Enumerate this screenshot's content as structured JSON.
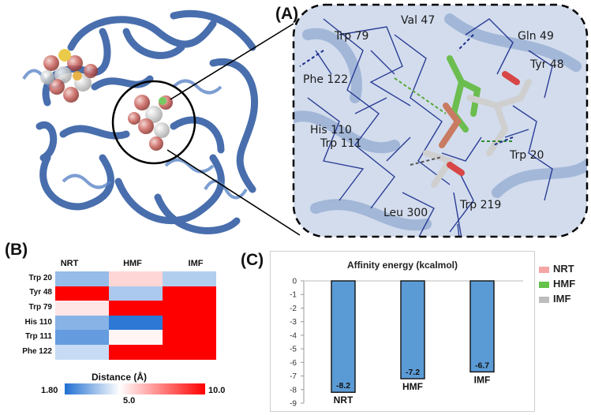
{
  "panels": {
    "a": "(A)",
    "b": "(B)",
    "c": "(C)"
  },
  "zoom_residues": [
    "Val 47",
    "Trp 79",
    "Gln 49",
    "Tyr 48",
    "Phe 122",
    "His 110",
    "Trp 111",
    "Trp 20",
    "Leu 300",
    "Trp 219"
  ],
  "heatmap": {
    "columns": [
      "NRT",
      "HMF",
      "IMF"
    ],
    "rows": [
      "Trp 20",
      "Tyr 48",
      "Trp 79",
      "His 110",
      "Trp 111",
      "Phe 122"
    ],
    "values": [
      [
        3.5,
        5.8,
        3.9
      ],
      [
        10.0,
        3.8,
        10.0
      ],
      [
        5.5,
        10.0,
        10.0
      ],
      [
        3.3,
        2.0,
        10.0
      ],
      [
        2.8,
        5.2,
        10.0
      ],
      [
        4.2,
        10.0,
        10.0
      ]
    ],
    "colorbar": {
      "title": "Distance (Å)",
      "min_label": "1.80",
      "mid_label": "5.0",
      "max_label": "10.0",
      "min": 1.8,
      "mid": 5.0,
      "max": 10.0,
      "colors": [
        "#1f6fd1",
        "#ffffff",
        "#ff0000"
      ]
    }
  },
  "chart_data": {
    "type": "bar",
    "title": "Affinity energy (kcalmol)",
    "categories": [
      "NRT",
      "HMF",
      "IMF"
    ],
    "values": [
      -8.2,
      -7.2,
      -6.7
    ],
    "data_labels": [
      "-8.2",
      "-7.2",
      "-6.7"
    ],
    "ylim": [
      -9,
      0
    ],
    "yticks": [
      "0",
      "-1",
      "-2",
      "-3",
      "-4",
      "-5",
      "-6",
      "-7",
      "-8",
      "-9"
    ],
    "bar_color": "#5b9bd5",
    "legend": [
      {
        "name": "NRT",
        "color": "#f4a6a6"
      },
      {
        "name": "HMF",
        "color": "#66c24a"
      },
      {
        "name": "IMF",
        "color": "#bdbdbd"
      }
    ]
  }
}
